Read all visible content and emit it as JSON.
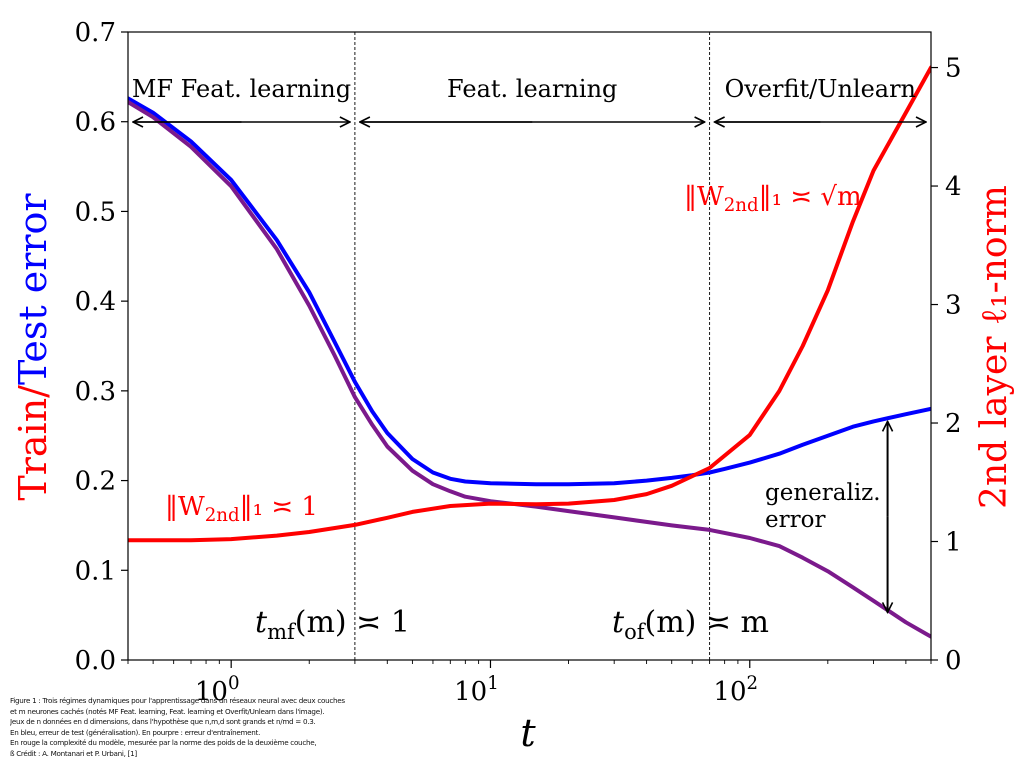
{
  "chart_data": {
    "type": "line",
    "xscale": "log",
    "xlabel": "t",
    "xlim": [
      0.4,
      500
    ],
    "x_ticks": [
      {
        "value": 1,
        "label": "10",
        "exp": "0"
      },
      {
        "value": 10,
        "label": "10",
        "exp": "1"
      },
      {
        "value": 100,
        "label": "10",
        "exp": "2"
      }
    ],
    "ylabel_left": {
      "part1": "Train/",
      "part2": "Test error",
      "color_part1": "#ff0000",
      "color_part2": "#0000ff"
    },
    "ylim_left": [
      0,
      0.7
    ],
    "y_ticks_left": [
      "0.0",
      "0.1",
      "0.2",
      "0.3",
      "0.4",
      "0.5",
      "0.6",
      "0.7"
    ],
    "ylabel_right": "2nd layer ℓ₁-norm",
    "ylim_right": [
      0,
      5.3
    ],
    "y_ticks_right": [
      "0",
      "1",
      "2",
      "3",
      "4",
      "5"
    ],
    "series": [
      {
        "name": "Test error",
        "axis": "left",
        "color": "#0000ff",
        "points": [
          [
            0.4,
            0.626
          ],
          [
            0.5,
            0.61
          ],
          [
            0.7,
            0.578
          ],
          [
            1.0,
            0.535
          ],
          [
            1.5,
            0.468
          ],
          [
            2.0,
            0.41
          ],
          [
            2.5,
            0.355
          ],
          [
            3.0,
            0.31
          ],
          [
            3.5,
            0.277
          ],
          [
            4.0,
            0.253
          ],
          [
            5.0,
            0.224
          ],
          [
            6.0,
            0.209
          ],
          [
            7.0,
            0.202
          ],
          [
            8.0,
            0.199
          ],
          [
            10,
            0.197
          ],
          [
            15,
            0.196
          ],
          [
            20,
            0.196
          ],
          [
            30,
            0.197
          ],
          [
            40,
            0.2
          ],
          [
            50,
            0.203
          ],
          [
            60,
            0.206
          ],
          [
            70,
            0.209
          ],
          [
            80,
            0.213
          ],
          [
            100,
            0.22
          ],
          [
            130,
            0.23
          ],
          [
            160,
            0.24
          ],
          [
            200,
            0.25
          ],
          [
            250,
            0.26
          ],
          [
            300,
            0.266
          ],
          [
            400,
            0.274
          ],
          [
            500,
            0.28
          ]
        ]
      },
      {
        "name": "Train error",
        "axis": "left",
        "color": "#7b1a8c",
        "points": [
          [
            0.4,
            0.622
          ],
          [
            0.5,
            0.605
          ],
          [
            0.7,
            0.572
          ],
          [
            1.0,
            0.528
          ],
          [
            1.5,
            0.458
          ],
          [
            2.0,
            0.395
          ],
          [
            2.5,
            0.34
          ],
          [
            3.0,
            0.293
          ],
          [
            3.5,
            0.262
          ],
          [
            4.0,
            0.238
          ],
          [
            5.0,
            0.211
          ],
          [
            6.0,
            0.196
          ],
          [
            7.0,
            0.188
          ],
          [
            8.0,
            0.182
          ],
          [
            10,
            0.177
          ],
          [
            15,
            0.171
          ],
          [
            20,
            0.166
          ],
          [
            30,
            0.159
          ],
          [
            50,
            0.15
          ],
          [
            70,
            0.145
          ],
          [
            100,
            0.136
          ],
          [
            130,
            0.127
          ],
          [
            160,
            0.114
          ],
          [
            200,
            0.099
          ],
          [
            250,
            0.081
          ],
          [
            300,
            0.066
          ],
          [
            400,
            0.042
          ],
          [
            500,
            0.026
          ]
        ]
      },
      {
        "name": "2nd layer norm",
        "axis": "right",
        "color": "#ff0000",
        "points": [
          [
            0.4,
            1.01
          ],
          [
            0.7,
            1.01
          ],
          [
            1.0,
            1.02
          ],
          [
            1.5,
            1.05
          ],
          [
            2.0,
            1.08
          ],
          [
            3.0,
            1.14
          ],
          [
            4.0,
            1.2
          ],
          [
            5.0,
            1.25
          ],
          [
            7.0,
            1.3
          ],
          [
            10,
            1.32
          ],
          [
            15,
            1.315
          ],
          [
            20,
            1.32
          ],
          [
            30,
            1.35
          ],
          [
            40,
            1.4
          ],
          [
            50,
            1.47
          ],
          [
            70,
            1.62
          ],
          [
            100,
            1.9
          ],
          [
            130,
            2.27
          ],
          [
            160,
            2.65
          ],
          [
            200,
            3.12
          ],
          [
            250,
            3.7
          ],
          [
            300,
            4.13
          ],
          [
            400,
            4.62
          ],
          [
            500,
            5.0
          ]
        ]
      }
    ],
    "vlines": [
      3.0,
      70
    ],
    "phases": [
      {
        "label": "MF Feat. learning",
        "from": 0.4,
        "to": 3.0
      },
      {
        "label": "Feat. learning",
        "from": 3.0,
        "to": 70
      },
      {
        "label": "Overfit/Unlearn",
        "from": 70,
        "to": 500
      }
    ],
    "annotations": {
      "norm_const": "‖W",
      "norm_const_sub": "2nd",
      "norm_const_rest": "‖₁ ≍ 1",
      "norm_sqrt": "‖W",
      "norm_sqrt_sub": "2nd",
      "norm_sqrt_rest": "‖₁ ≍ √m",
      "t_mf": "t",
      "t_mf_sub": "mf",
      "t_mf_rest": "(m) ≍ 1",
      "t_of": "t",
      "t_of_sub": "of",
      "t_of_rest": "(m) ≍ m",
      "gen_line1": "generaliz.",
      "gen_line2": "error"
    },
    "gen_arrow": {
      "x": 340,
      "y_top": 0.266,
      "y_bottom": 0.053
    }
  },
  "caption": [
    "Figure 1 : Trois régimes dynamiques pour l'apprentissage dans un réseaux neural avec deux couches",
    "et m neurones cachés (notés MF Feat. learning, Feat. learning et Overfit/Unlearn dans l'image).",
    "Jeux de n données en d dimensions, dans l'hypothèse que n,m,d sont grands et n/md = 0.3.",
    " En bleu, erreur de test (généralisation). En pourpre : erreur d'entraînement.",
    "En rouge la complexité du modèle, mesurée par la norme des poids de la deuxième couche,",
    "ß Crédit : A. Montanari et P. Urbani, [1]"
  ]
}
